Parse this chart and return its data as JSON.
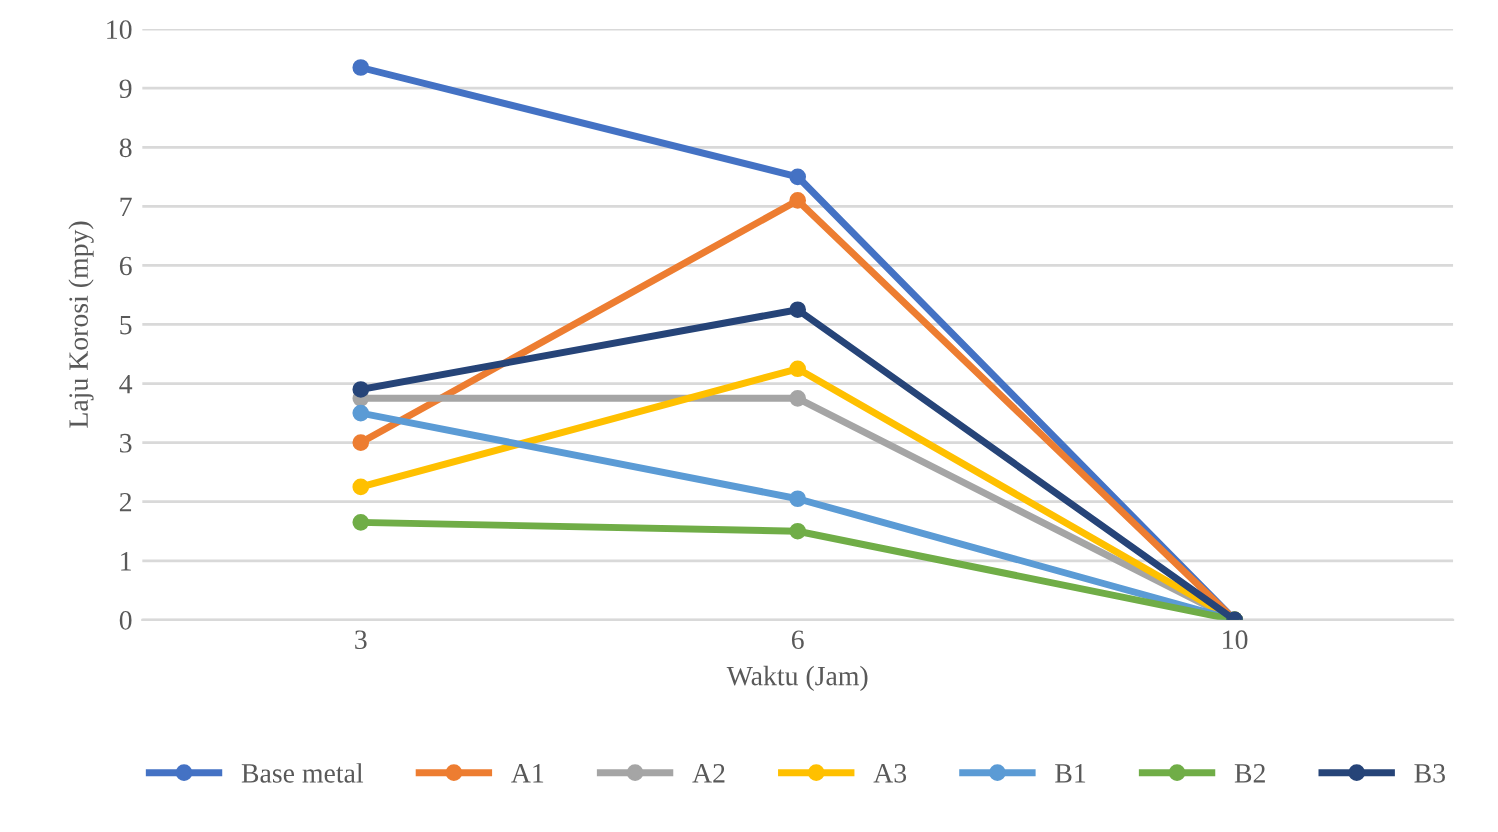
{
  "chart_data": {
    "type": "line",
    "xlabel": "Waktu (Jam)",
    "ylabel": "Laju Korosi (mpy)",
    "categories": [
      "3",
      "6",
      "10"
    ],
    "series": [
      {
        "name": "Base metal",
        "color": "#4472c4",
        "values": [
          9.35,
          7.5,
          0
        ]
      },
      {
        "name": "A1",
        "color": "#ed7d31",
        "values": [
          3.0,
          7.1,
          0
        ]
      },
      {
        "name": "A2",
        "color": "#a5a5a5",
        "values": [
          3.75,
          3.75,
          0
        ]
      },
      {
        "name": "A3",
        "color": "#ffc000",
        "values": [
          2.25,
          4.25,
          0
        ]
      },
      {
        "name": "B1",
        "color": "#5b9bd5",
        "values": [
          3.5,
          2.05,
          0
        ]
      },
      {
        "name": "B2",
        "color": "#70ad47",
        "values": [
          1.65,
          1.5,
          0
        ]
      },
      {
        "name": "B3",
        "color": "#264478",
        "values": [
          3.9,
          5.25,
          0
        ]
      }
    ],
    "ylim": [
      0,
      10
    ],
    "yticks": [
      0,
      1,
      2,
      3,
      4,
      5,
      6,
      7,
      8,
      9,
      10
    ],
    "grid": "y",
    "legend": "bottom",
    "marker": "circle",
    "line_style": "solid"
  }
}
